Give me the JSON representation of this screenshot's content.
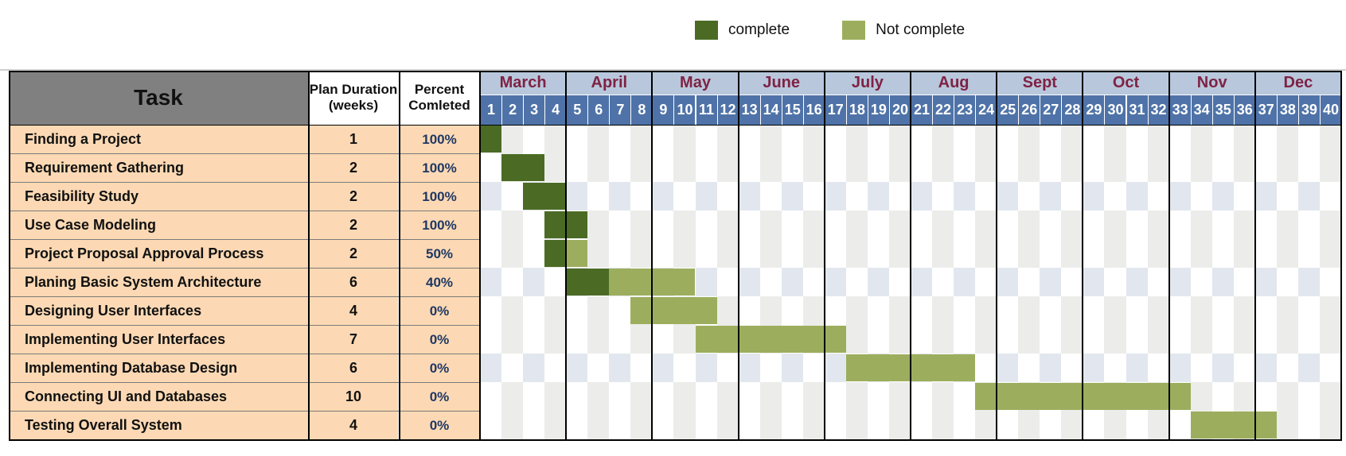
{
  "legend": [
    {
      "label": "complete",
      "color": "#4b6b25"
    },
    {
      "label": "Not complete",
      "color": "#9cae5d"
    }
  ],
  "headers": {
    "task": "Task",
    "duration": "Plan Duration (weeks)",
    "percent": "Percent Comleted"
  },
  "colors": {
    "complete": "#4b6b25",
    "not_complete": "#9cae5d",
    "task_bg": "#fcd9b4",
    "month_bg": "#b8c7dc",
    "month_text": "#7f2244",
    "week_bg": "#4f73a8",
    "stripe_a": "#ecedea",
    "stripe_b": "#ffffff",
    "stripe_c": "#e2e7ef"
  },
  "chart_data": {
    "type": "gantt",
    "months": [
      {
        "name": "March",
        "weeks": 4
      },
      {
        "name": "April",
        "weeks": 4
      },
      {
        "name": "May",
        "weeks": 4
      },
      {
        "name": "June",
        "weeks": 4
      },
      {
        "name": "July",
        "weeks": 4
      },
      {
        "name": "Aug",
        "weeks": 4
      },
      {
        "name": "Sept",
        "weeks": 4
      },
      {
        "name": "Oct",
        "weeks": 4
      },
      {
        "name": "Nov",
        "weeks": 4
      },
      {
        "name": "Dec",
        "weeks": 4
      }
    ],
    "weeks": [
      "1",
      "2",
      "3",
      "4",
      "5",
      "6",
      "7",
      "8",
      "9",
      "10",
      "11",
      "12",
      "13",
      "14",
      "15",
      "16",
      "17",
      "18",
      "19",
      "20",
      "21",
      "22",
      "23",
      "24",
      "25",
      "26",
      "27",
      "28",
      "29",
      "30",
      "31",
      "32",
      "33",
      "34",
      "35",
      "36",
      "37",
      "38",
      "39",
      "40"
    ],
    "tasks": [
      {
        "name": "Finding a Project",
        "duration": "1",
        "percent": "100%",
        "start_week": 1,
        "weeks": 1,
        "complete_weeks": 1
      },
      {
        "name": "Requirement Gathering",
        "duration": "2",
        "percent": "100%",
        "start_week": 2,
        "weeks": 2,
        "complete_weeks": 2
      },
      {
        "name": "Feasibility Study",
        "duration": "2",
        "percent": "100%",
        "start_week": 3,
        "weeks": 2,
        "complete_weeks": 2
      },
      {
        "name": "Use Case Modeling",
        "duration": "2",
        "percent": "100%",
        "start_week": 4,
        "weeks": 2,
        "complete_weeks": 2
      },
      {
        "name": "Project Proposal Approval Process",
        "duration": "2",
        "percent": "50%",
        "start_week": 4,
        "weeks": 2,
        "complete_weeks": 1
      },
      {
        "name": "Planing Basic System Architecture",
        "duration": "6",
        "percent": "40%",
        "start_week": 5,
        "weeks": 6,
        "complete_weeks": 2
      },
      {
        "name": "Designing User Interfaces",
        "duration": "4",
        "percent": "0%",
        "start_week": 8,
        "weeks": 4,
        "complete_weeks": 0
      },
      {
        "name": "Implementing User Interfaces",
        "duration": "7",
        "percent": "0%",
        "start_week": 11,
        "weeks": 7,
        "complete_weeks": 0
      },
      {
        "name": "Implementing Database Design",
        "duration": "6",
        "percent": "0%",
        "start_week": 18,
        "weeks": 6,
        "complete_weeks": 0
      },
      {
        "name": "Connecting UI and Databases",
        "duration": "10",
        "percent": "0%",
        "start_week": 24,
        "weeks": 10,
        "complete_weeks": 0
      },
      {
        "name": "Testing Overall System",
        "duration": "4",
        "percent": "0%",
        "start_week": 34,
        "weeks": 4,
        "complete_weeks": 0
      }
    ]
  }
}
